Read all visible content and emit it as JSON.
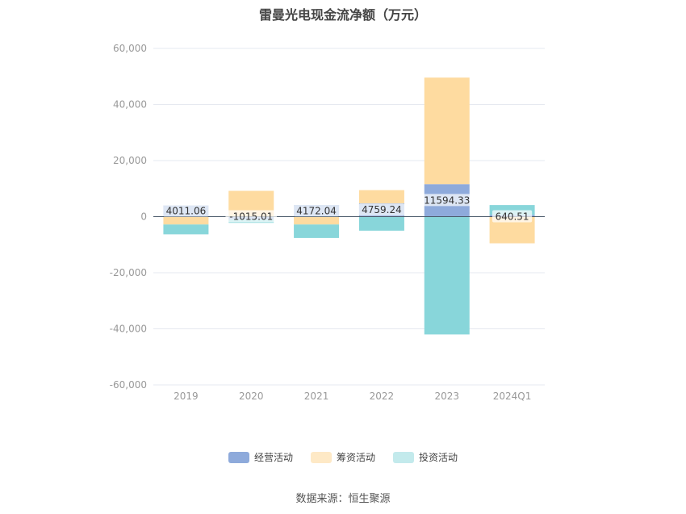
{
  "title": "雷曼光电现金流净额（万元）",
  "source": "数据来源：恒生聚源",
  "colors": {
    "经营活动": "#8eaadb",
    "筹资活动": "#fedba0",
    "投资活动": "#88d6da",
    "zero_line": "#4a5a6a",
    "grid": "#e6e9f0",
    "label_bg": "#ffffff"
  },
  "chart_data": {
    "type": "bar",
    "stacked": true,
    "title": "雷曼光电现金流净额（万元）",
    "categories": [
      "2019",
      "2020",
      "2021",
      "2022",
      "2023",
      "2024Q1"
    ],
    "ylim": [
      -60000,
      60000
    ],
    "yticks": [
      60000,
      40000,
      20000,
      0,
      -20000,
      -40000,
      -60000
    ],
    "ytick_labels": [
      "60,000",
      "40,000",
      "20,000",
      "0",
      "-20,000",
      "-40,000",
      "-60,000"
    ],
    "grid": true,
    "legend_position": "bottom",
    "series": [
      {
        "name": "经营活动",
        "values": [
          4011.06,
          -1015.01,
          4172.04,
          4759.24,
          11594.33,
          640.51
        ]
      },
      {
        "name": "筹资活动",
        "values": [
          -2800,
          9200,
          -2800,
          4700,
          38000,
          -9500
        ]
      },
      {
        "name": "投资活动",
        "values": [
          -3500,
          -1200,
          -4800,
          -5000,
          -42000,
          3500
        ]
      }
    ],
    "data_labels": [
      "4011.06",
      "-1015.01",
      "4172.04",
      "4759.24",
      "11594.33",
      "640.51"
    ]
  }
}
